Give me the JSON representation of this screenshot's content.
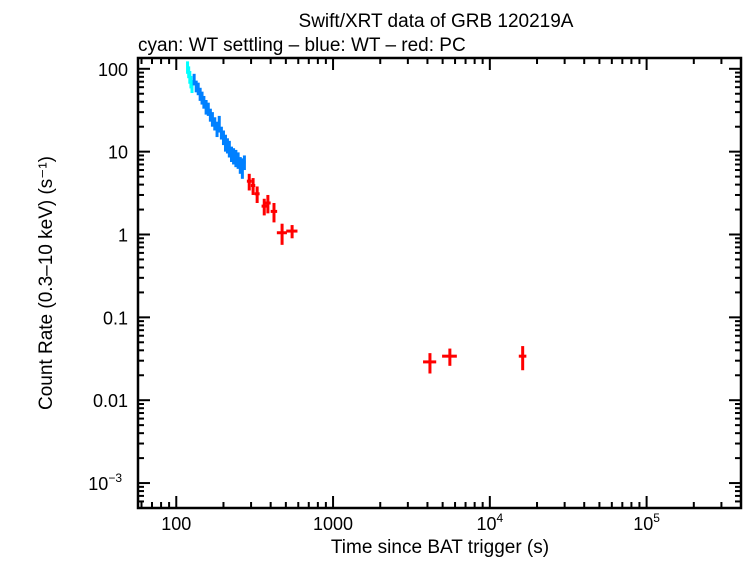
{
  "chart_data": {
    "type": "scatter",
    "title": "Swift/XRT data of GRB 120219A",
    "subtitle": "cyan: WT settling – blue: WT – red: PC",
    "xlabel": "Time since BAT trigger (s)",
    "ylabel": "Count Rate (0.3–10 keV) (s⁻¹)",
    "xscale": "log",
    "yscale": "log",
    "xlim": [
      57,
      400000
    ],
    "ylim": [
      0.0005,
      135
    ],
    "xticks": [
      {
        "v": 100,
        "label": "100"
      },
      {
        "v": 1000,
        "label": "1000"
      },
      {
        "v": 10000,
        "label": "10",
        "exp": "4"
      },
      {
        "v": 100000,
        "label": "10",
        "exp": "5"
      }
    ],
    "yticks": [
      {
        "v": 100,
        "label": "100"
      },
      {
        "v": 10,
        "label": "10"
      },
      {
        "v": 1,
        "label": "1"
      },
      {
        "v": 0.1,
        "label": "0.1"
      },
      {
        "v": 0.01,
        "label": "0.01"
      },
      {
        "v": 0.001,
        "label": "10",
        "exp": "−3"
      }
    ],
    "grid": false,
    "series": [
      {
        "color": "#00ffff",
        "points": [
          {
            "t": 118,
            "dt": 1,
            "r": 105,
            "dr": 18
          },
          {
            "t": 120,
            "dt": 1,
            "r": 92,
            "dr": 15
          },
          {
            "t": 122,
            "dt": 1,
            "r": 80,
            "dr": 14
          },
          {
            "t": 124,
            "dt": 1,
            "r": 70,
            "dr": 12
          },
          {
            "t": 126,
            "dt": 1,
            "r": 62,
            "dr": 11
          }
        ]
      },
      {
        "color": "#0080ff",
        "points": [
          {
            "t": 130,
            "dt": 2,
            "r": 75,
            "dr": 12
          },
          {
            "t": 134,
            "dt": 2,
            "r": 62,
            "dr": 10
          },
          {
            "t": 138,
            "dt": 2,
            "r": 58,
            "dr": 10
          },
          {
            "t": 142,
            "dt": 2,
            "r": 50,
            "dr": 9
          },
          {
            "t": 146,
            "dt": 2,
            "r": 45,
            "dr": 8
          },
          {
            "t": 150,
            "dt": 2,
            "r": 40,
            "dr": 7
          },
          {
            "t": 155,
            "dt": 2,
            "r": 35,
            "dr": 7
          },
          {
            "t": 160,
            "dt": 3,
            "r": 33,
            "dr": 6
          },
          {
            "t": 165,
            "dt": 3,
            "r": 28,
            "dr": 5
          },
          {
            "t": 170,
            "dt": 3,
            "r": 25,
            "dr": 5
          },
          {
            "t": 176,
            "dt": 3,
            "r": 22,
            "dr": 4
          },
          {
            "t": 182,
            "dt": 3,
            "r": 19,
            "dr": 4
          },
          {
            "t": 188,
            "dt": 3,
            "r": 22,
            "dr": 5
          },
          {
            "t": 194,
            "dt": 3,
            "r": 17,
            "dr": 3
          },
          {
            "t": 200,
            "dt": 3,
            "r": 15,
            "dr": 3
          },
          {
            "t": 206,
            "dt": 4,
            "r": 13,
            "dr": 3
          },
          {
            "t": 212,
            "dt": 4,
            "r": 12,
            "dr": 2.5
          },
          {
            "t": 218,
            "dt": 4,
            "r": 11,
            "dr": 2.5
          },
          {
            "t": 225,
            "dt": 4,
            "r": 9.5,
            "dr": 2
          },
          {
            "t": 232,
            "dt": 4,
            "r": 9,
            "dr": 2
          },
          {
            "t": 240,
            "dt": 4,
            "r": 8.5,
            "dr": 2
          },
          {
            "t": 248,
            "dt": 5,
            "r": 8,
            "dr": 1.8
          },
          {
            "t": 256,
            "dt": 5,
            "r": 7,
            "dr": 1.6
          },
          {
            "t": 264,
            "dt": 5,
            "r": 6.5,
            "dr": 1.8
          },
          {
            "t": 272,
            "dt": 5,
            "r": 7.5,
            "dr": 1.5
          }
        ]
      },
      {
        "color": "#ff0000",
        "points": [
          {
            "t": 292,
            "dt": 10,
            "r": 4.4,
            "dr": 1.0
          },
          {
            "t": 309,
            "dt": 10,
            "r": 3.9,
            "dr": 0.9
          },
          {
            "t": 328,
            "dt": 12,
            "r": 3.1,
            "dr": 0.7
          },
          {
            "t": 364,
            "dt": 14,
            "r": 2.2,
            "dr": 0.5
          },
          {
            "t": 384,
            "dt": 16,
            "r": 2.4,
            "dr": 0.6
          },
          {
            "t": 420,
            "dt": 20,
            "r": 1.9,
            "dr": 0.5
          },
          {
            "t": 473,
            "dt": 35,
            "r": 1.05,
            "dr": 0.3
          },
          {
            "t": 548,
            "dt": 45,
            "r": 1.1,
            "dr": 0.2
          },
          {
            "t": 4150,
            "dt": 400,
            "r": 0.029,
            "dr": 0.008
          },
          {
            "t": 5560,
            "dt": 600,
            "r": 0.034,
            "dr": 0.008
          },
          {
            "t": 16200,
            "dt": 900,
            "r": 0.034,
            "dr": 0.011
          }
        ]
      }
    ]
  }
}
